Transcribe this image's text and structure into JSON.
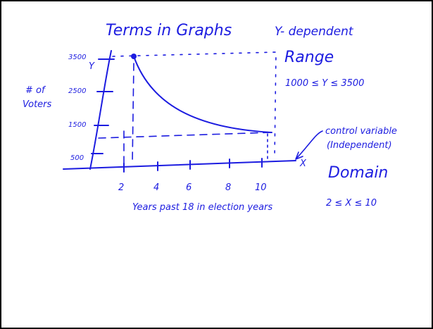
{
  "title": "Terms in Graphs",
  "range": {
    "heading": "Y- dependent",
    "label": "Range",
    "inequality": "1000 ≤ Y ≤ 3500"
  },
  "domain": {
    "label": "Domain",
    "inequality": "2 ≤ X ≤ 10"
  },
  "control": {
    "line1": "control variable",
    "line2": "(Independent)"
  },
  "y_axis": {
    "title_line1": "# of",
    "title_line2": "Voters",
    "letter": "Y",
    "ticks": [
      "3500",
      "2500",
      "1500",
      "500"
    ]
  },
  "x_axis": {
    "letter": "X",
    "ticks": [
      "2",
      "4",
      "6",
      "8",
      "10"
    ],
    "caption": "Years past 18 in election years"
  }
}
